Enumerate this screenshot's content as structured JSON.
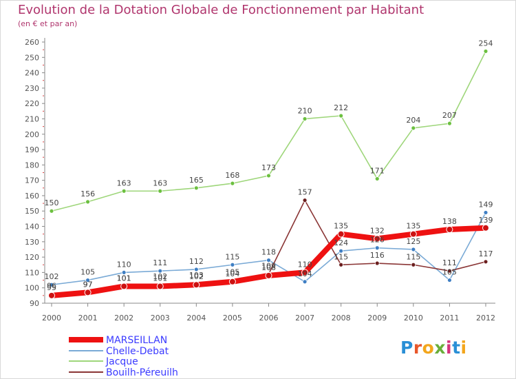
{
  "header": {
    "title": "Evolution de la Dotation Globale de Fonctionnement par Habitant",
    "subtitle": "(en € et par an)"
  },
  "logo": {
    "text": "Proxiti",
    "letters": [
      "P",
      "r",
      "o",
      "x",
      "i",
      "t",
      "i"
    ],
    "colors": [
      "#2a8fd6",
      "#e8572a",
      "#f3a61c",
      "#6aae3a",
      "#d6337c",
      "#2a8fd6",
      "#f3a61c"
    ]
  },
  "chart_data": {
    "type": "line",
    "title": "Evolution de la Dotation Globale de Fonctionnement par Habitant",
    "subtitle": "(en € et par an)",
    "xlabel": "",
    "ylabel": "",
    "x": [
      "2000",
      "2001",
      "2002",
      "2003",
      "2004",
      "2005",
      "2006",
      "2007",
      "2008",
      "2009",
      "2010",
      "2011",
      "2012"
    ],
    "ylim": [
      90,
      260
    ],
    "yticks": [
      90,
      100,
      110,
      120,
      130,
      140,
      150,
      160,
      170,
      180,
      190,
      200,
      210,
      220,
      230,
      240,
      250,
      260
    ],
    "grid": false,
    "legend_position": "bottom-left",
    "series": [
      {
        "name": "MARSEILLAN",
        "color": "#ee1111",
        "marker": "#cc1111",
        "values": [
          95,
          97,
          101,
          101,
          102,
          104,
          108,
          110,
          135,
          132,
          135,
          138,
          139
        ],
        "labels": [
          "95",
          "97",
          "101",
          "101",
          "102",
          "104",
          "108",
          "110",
          "135",
          "132",
          "135",
          "138",
          "139"
        ]
      },
      {
        "name": "Chelle-Debat",
        "color": "#7aaad6",
        "marker": "#3f7fc4",
        "values": [
          102,
          105,
          110,
          111,
          112,
          115,
          118,
          104,
          124,
          126,
          125,
          105,
          149
        ],
        "labels": [
          "102",
          "105",
          "110",
          "111",
          "112",
          "115",
          "118",
          "104",
          "124",
          "126",
          "125",
          "105",
          "149"
        ]
      },
      {
        "name": "Jacque",
        "color": "#9ed67a",
        "marker": "#6cc040",
        "values": [
          150,
          156,
          163,
          163,
          165,
          168,
          173,
          210,
          212,
          171,
          204,
          207,
          254
        ],
        "labels": [
          "150",
          "156",
          "163",
          "163",
          "165",
          "168",
          "173",
          "210",
          "212",
          "171",
          "204",
          "207",
          "254"
        ]
      },
      {
        "name": "Bouilh-Péreuilh",
        "color": "#8a3535",
        "marker": "#6b1f1f",
        "values": [
          96,
          97,
          101,
          102,
          103,
          105,
          109,
          157,
          115,
          116,
          115,
          111,
          117
        ],
        "labels": [
          "96",
          "97",
          "101",
          "102",
          "103",
          "105",
          "109",
          "157",
          "115",
          "116",
          "115",
          "111",
          "117"
        ]
      }
    ]
  }
}
